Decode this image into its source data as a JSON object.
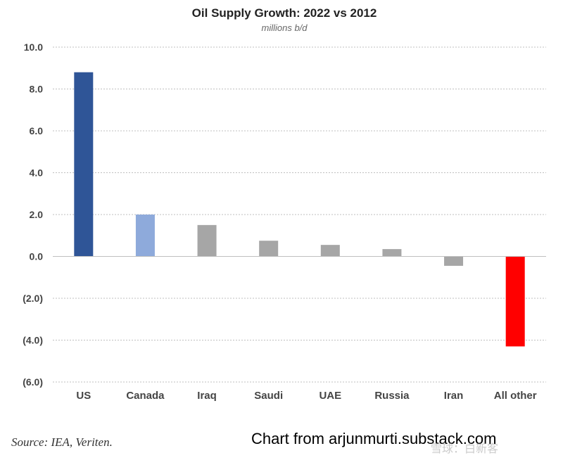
{
  "chart_data": {
    "type": "bar",
    "title": "Oil Supply Growth: 2022 vs 2012",
    "subtitle": "millions b/d",
    "categories": [
      "US",
      "Canada",
      "Iraq",
      "Saudi",
      "UAE",
      "Russia",
      "Iran",
      "All other"
    ],
    "values": [
      8.8,
      2.0,
      1.5,
      0.75,
      0.55,
      0.35,
      -0.45,
      -4.3
    ],
    "colors": [
      "#2f5597",
      "#8eaadb",
      "#a6a6a6",
      "#a6a6a6",
      "#a6a6a6",
      "#a6a6a6",
      "#a6a6a6",
      "#ff0000"
    ],
    "ylim": [
      -6,
      10
    ],
    "yticks": [
      10,
      8,
      6,
      4,
      2,
      0,
      -2,
      -4,
      -6
    ],
    "ytick_labels": [
      "10.0",
      "8.0",
      "6.0",
      "4.0",
      "2.0",
      "0.0",
      "(2.0)",
      "(4.0)",
      "(6.0)"
    ],
    "grid": true,
    "gridline_color": "#bfbfbf"
  },
  "footer": {
    "source": "Source: IEA, Veriten.",
    "credit": "Chart from arjunmurti.substack.com",
    "watermark": "雪球：白新客"
  }
}
